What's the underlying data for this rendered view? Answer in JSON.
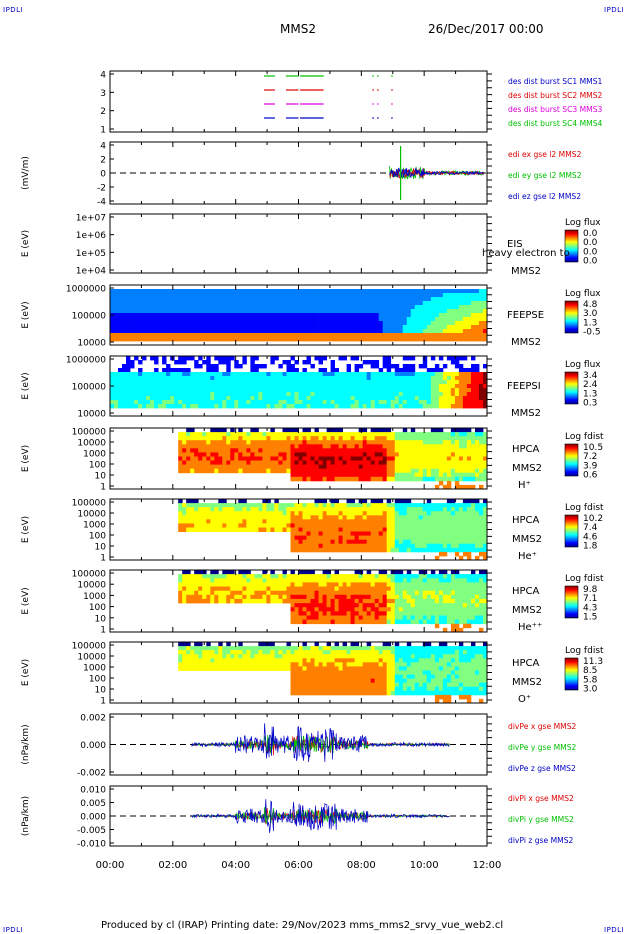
{
  "corner_label": "IPDLI",
  "header": {
    "mission": "MMS2",
    "date": "26/Dec/2017 00:00"
  },
  "footer": {
    "text": "Produced by cl (IRAP)   Printing date: 29/Nov/2023   mms_mms2_srvy_vue_web2.cl"
  },
  "colors": {
    "sc1": "#0000c8",
    "sc2": "#e00000",
    "sc3": "#e000e0",
    "sc4": "#00c000"
  },
  "chart_data": [
    {
      "type": "line",
      "panel": "burst",
      "yticks": [
        "4",
        "3",
        "2",
        "1"
      ],
      "ylim": [
        0.5,
        4.5
      ],
      "legend": [
        {
          "label": "des dist burst SC1 MMS1",
          "color": "#0000c8"
        },
        {
          "label": "des dist burst SC2 MMS2",
          "color": "#e00000"
        },
        {
          "label": "des dist burst SC3 MMS3",
          "color": "#e000e0"
        },
        {
          "label": "des dist burst SC4 MMS4",
          "color": "#00c000"
        }
      ],
      "intervals_hours": [
        [
          4.9,
          5.25
        ],
        [
          5.6,
          6.0
        ],
        [
          6.05,
          6.8
        ],
        [
          8.35,
          8.4
        ],
        [
          8.5,
          8.55
        ],
        [
          8.95,
          9.0
        ]
      ]
    },
    {
      "type": "line",
      "panel": "edi",
      "ylabel": "(mV/m)",
      "yticks": [
        "4",
        "2",
        "0",
        "-2",
        "-4"
      ],
      "ylim": [
        -5,
        5
      ],
      "legend": [
        {
          "label": "edi ex gse l2 MMS2",
          "color": "#e00000"
        },
        {
          "label": "edi ey gse l2 MMS2",
          "color": "#00c000"
        },
        {
          "label": "edi ez gse l2 MMS2",
          "color": "#0000c8"
        }
      ]
    },
    {
      "type": "heatmap",
      "panel": "eis",
      "ylabel": "E (eV)",
      "ylog": true,
      "yticks": [
        "1e+07",
        "1e+06",
        "1e+05",
        "1e+04"
      ],
      "labels": [
        "EIS",
        "MMS2"
      ],
      "overlay": "heavy electron to",
      "colorbar": {
        "title": "Log flux",
        "ticks": [
          "0.0",
          "0.0",
          "0.0",
          "0.0"
        ]
      }
    },
    {
      "type": "heatmap",
      "panel": "feepse",
      "ylabel": "E (eV)",
      "ylog": true,
      "yticks": [
        "1000000",
        "100000",
        "10000"
      ],
      "labels": [
        "FEEPSE",
        "MMS2"
      ],
      "colorbar": {
        "title": "Log flux",
        "ticks": [
          "4.8",
          "3.0",
          "1.3",
          "-0.5"
        ]
      }
    },
    {
      "type": "heatmap",
      "panel": "feepsi",
      "ylabel": "E (eV)",
      "ylog": true,
      "yticks": [
        "1000000",
        "100000",
        "10000"
      ],
      "labels": [
        "FEEPSI",
        "MMS2"
      ],
      "colorbar": {
        "title": "Log flux",
        "ticks": [
          "3.4",
          "2.4",
          "1.3",
          "0.3"
        ]
      }
    },
    {
      "type": "heatmap",
      "panel": "hpca_h",
      "ylabel": "E (eV)",
      "ylog": true,
      "yticks": [
        "100000",
        "10000",
        "1000",
        "100",
        "10",
        "1"
      ],
      "labels": [
        "HPCA",
        "MMS2",
        "H⁺"
      ],
      "colorbar": {
        "title": "Log fdist",
        "ticks": [
          "10.5",
          "7.2",
          "3.9",
          "0.6"
        ]
      }
    },
    {
      "type": "heatmap",
      "panel": "hpca_he",
      "ylabel": "E (eV)",
      "ylog": true,
      "yticks": [
        "100000",
        "10000",
        "1000",
        "100",
        "10",
        "1"
      ],
      "labels": [
        "HPCA",
        "MMS2",
        "He⁺"
      ],
      "colorbar": {
        "title": "Log fdist",
        "ticks": [
          "10.2",
          "7.4",
          "4.6",
          "1.8"
        ]
      }
    },
    {
      "type": "heatmap",
      "panel": "hpca_hepp",
      "ylabel": "E (eV)",
      "ylog": true,
      "yticks": [
        "100000",
        "10000",
        "1000",
        "100",
        "10",
        "1"
      ],
      "labels": [
        "HPCA",
        "MMS2",
        "He⁺⁺"
      ],
      "colorbar": {
        "title": "Log fdist",
        "ticks": [
          "9.8",
          "7.1",
          "4.3",
          "1.5"
        ]
      }
    },
    {
      "type": "heatmap",
      "panel": "hpca_o",
      "ylabel": "E (eV)",
      "ylog": true,
      "yticks": [
        "100000",
        "10000",
        "1000",
        "100",
        "10",
        "1"
      ],
      "labels": [
        "HPCA",
        "MMS2",
        "O⁺"
      ],
      "colorbar": {
        "title": "Log fdist",
        "ticks": [
          "11.3",
          "8.5",
          "5.8",
          "3.0"
        ]
      }
    },
    {
      "type": "line",
      "panel": "divpe",
      "ylabel": "(nPa/km)",
      "yticks": [
        "0.002",
        "0.000",
        "-0.002"
      ],
      "ylim": [
        -0.0035,
        0.0035
      ],
      "legend": [
        {
          "label": "divPe x gse MMS2",
          "color": "#e00000"
        },
        {
          "label": "divPe y gse MMS2",
          "color": "#00c000"
        },
        {
          "label": "divPe z gse MMS2",
          "color": "#0000c8"
        }
      ]
    },
    {
      "type": "line",
      "panel": "divpi",
      "ylabel": "(nPa/km)",
      "yticks": [
        "0.010",
        "0.005",
        "0.000",
        "-0.005",
        "-0.010"
      ],
      "ylim": [
        -0.013,
        0.013
      ],
      "legend": [
        {
          "label": "divPi x gse MMS2",
          "color": "#e00000"
        },
        {
          "label": "divPi y gse MMS2",
          "color": "#00c000"
        },
        {
          "label": "divPi z gse MMS2",
          "color": "#0000c8"
        }
      ]
    }
  ],
  "x_axis": {
    "ticks": [
      "00:00",
      "02:00",
      "04:00",
      "06:00",
      "08:00",
      "10:00",
      "12:00"
    ],
    "xlim_hours": [
      0,
      12
    ]
  }
}
